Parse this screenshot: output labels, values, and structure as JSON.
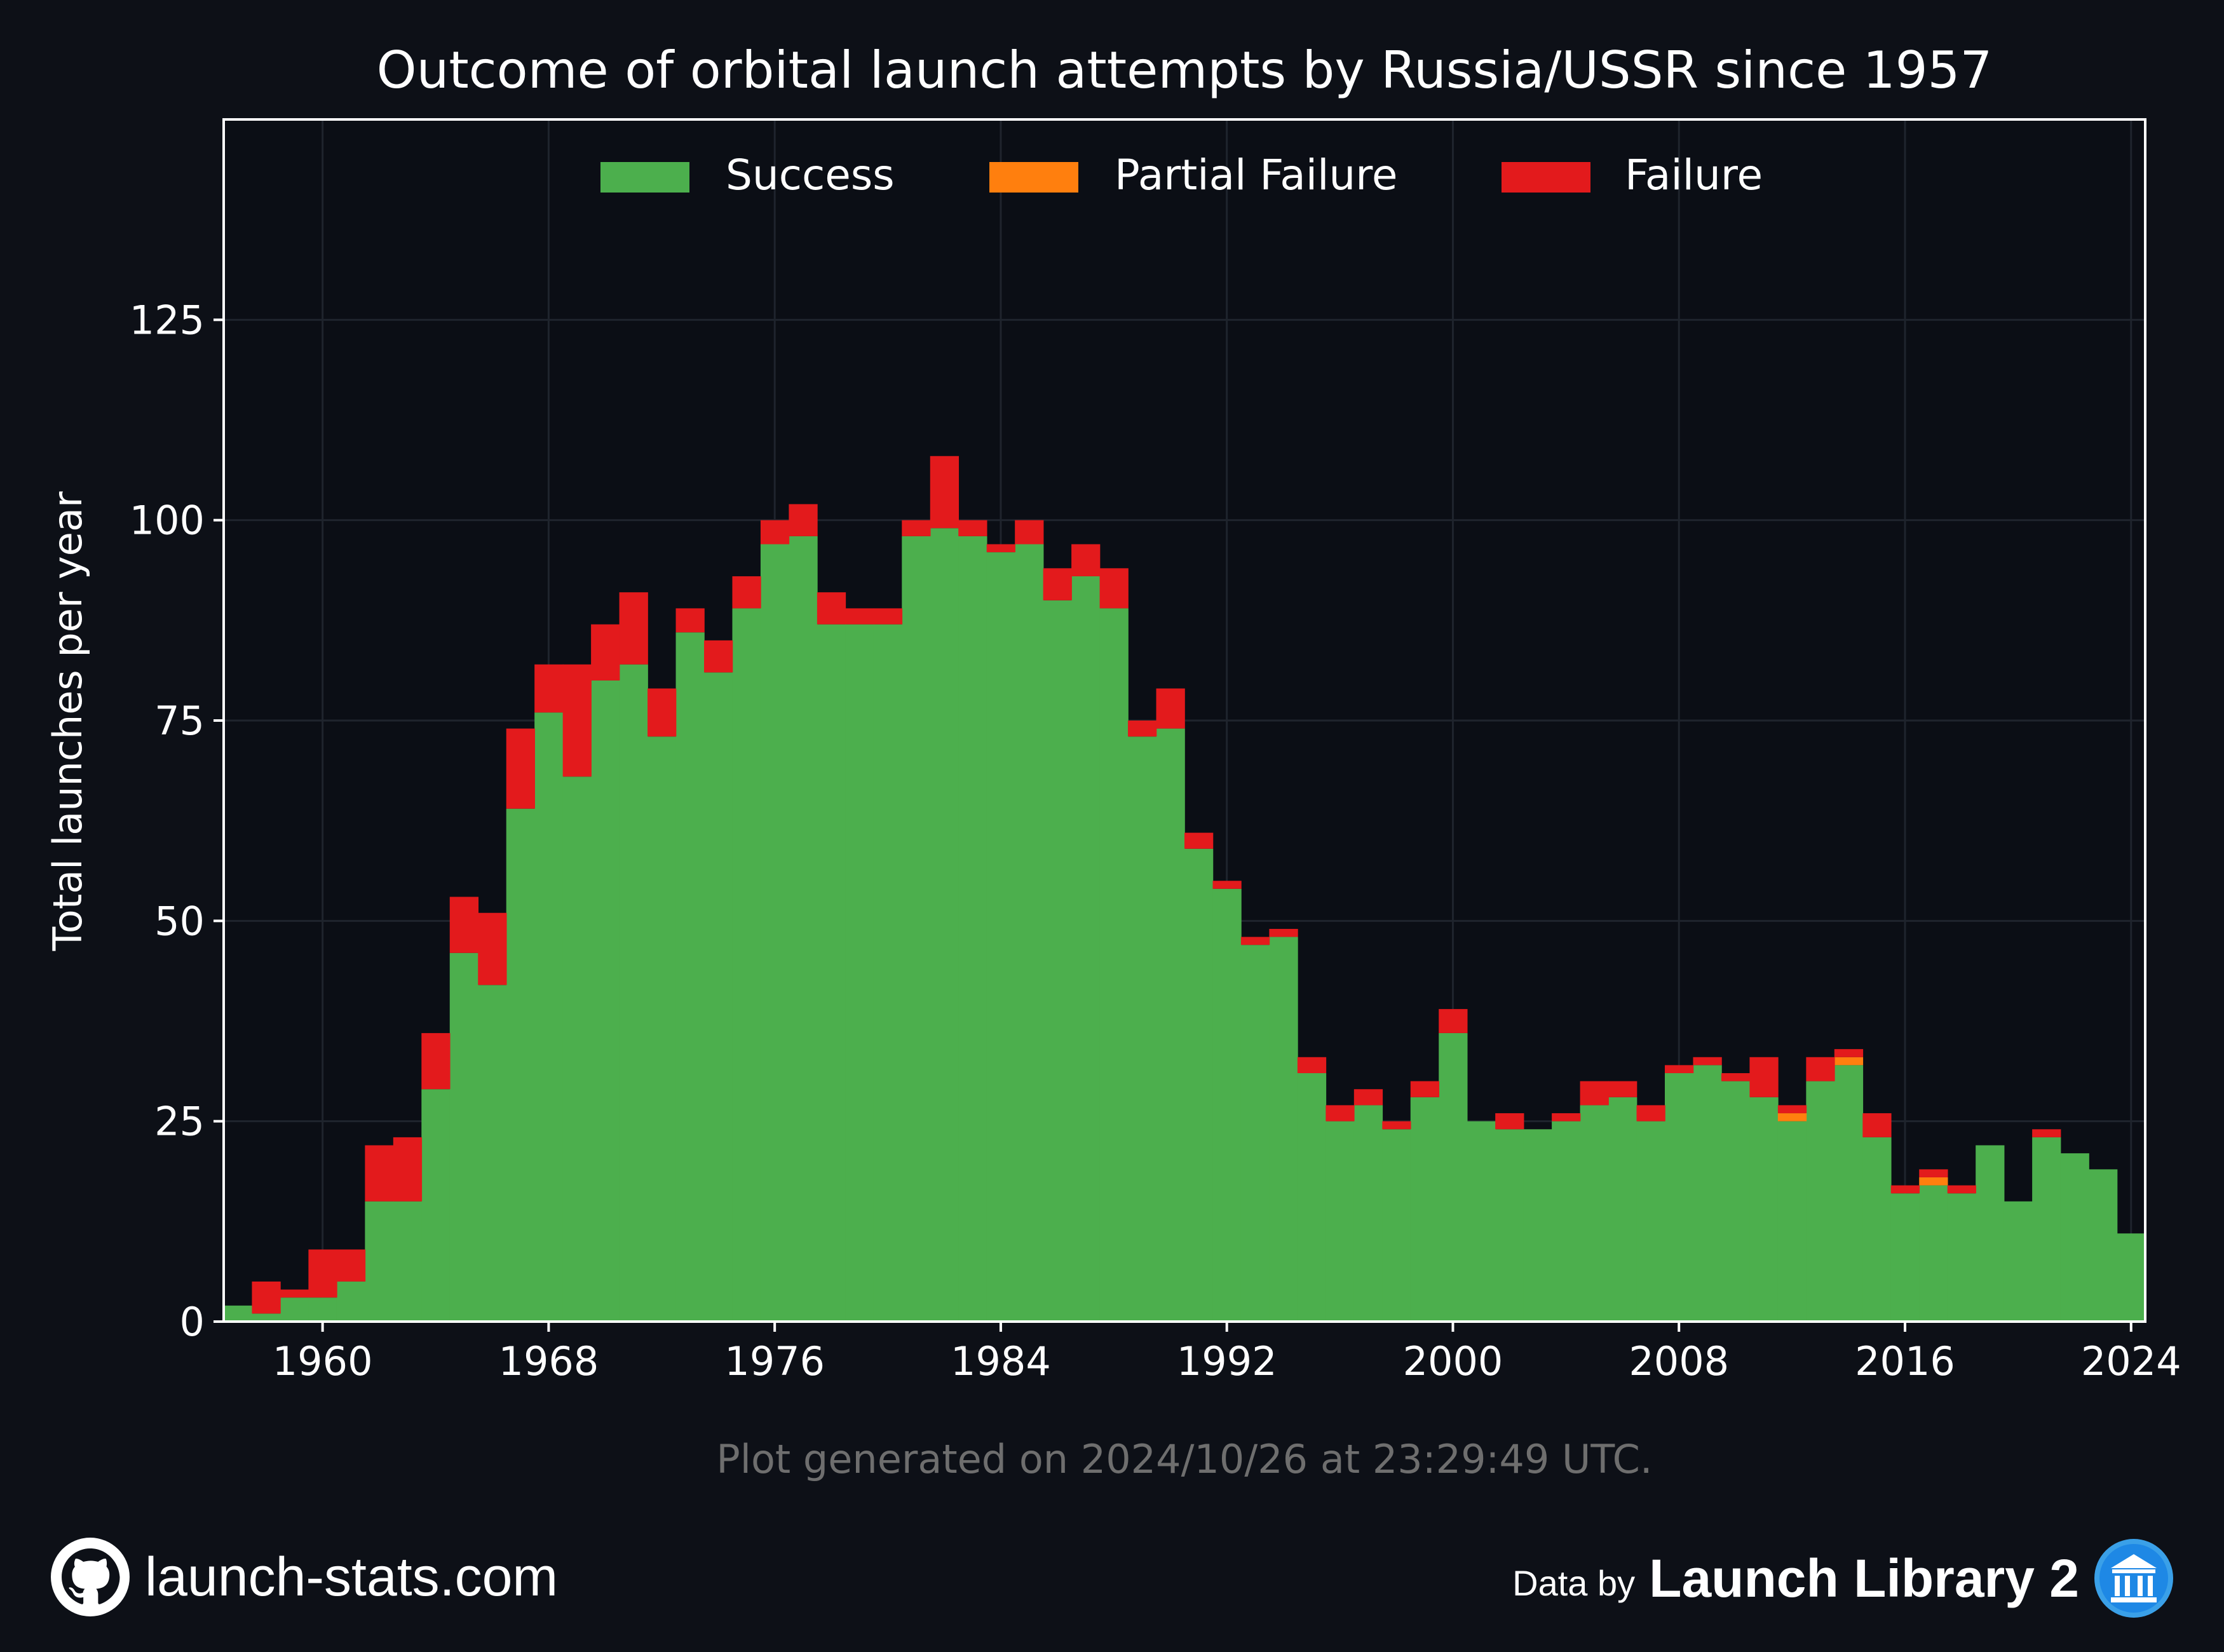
{
  "colors": {
    "background": "#0d1017",
    "success": "#4caf4d",
    "partial_failure": "#ff7f0e",
    "failure": "#e31a1c",
    "grid": "#1f242d",
    "text": "#ffffff",
    "footnote": "#6e6e6e"
  },
  "chart_data": {
    "type": "bar",
    "stacked": true,
    "title": "Outcome of orbital launch attempts by Russia/USSR since 1957",
    "xlabel": "",
    "ylabel": "Total launches per year",
    "xlim": [
      1956.5,
      2024.5
    ],
    "ylim": [
      0,
      150
    ],
    "yticks": [
      0,
      25,
      50,
      75,
      100,
      125
    ],
    "xticks": [
      1960,
      1968,
      1976,
      1984,
      1992,
      2000,
      2008,
      2016,
      2024
    ],
    "grid": true,
    "legend_position": "top-center",
    "categories": [
      1957,
      1958,
      1959,
      1960,
      1961,
      1962,
      1963,
      1964,
      1965,
      1966,
      1967,
      1968,
      1969,
      1970,
      1971,
      1972,
      1973,
      1974,
      1975,
      1976,
      1977,
      1978,
      1979,
      1980,
      1981,
      1982,
      1983,
      1984,
      1985,
      1986,
      1987,
      1988,
      1989,
      1990,
      1991,
      1992,
      1993,
      1994,
      1995,
      1996,
      1997,
      1998,
      1999,
      2000,
      2001,
      2002,
      2003,
      2004,
      2005,
      2006,
      2007,
      2008,
      2009,
      2010,
      2011,
      2012,
      2013,
      2014,
      2015,
      2016,
      2017,
      2018,
      2019,
      2020,
      2021,
      2022,
      2023,
      2024
    ],
    "series": [
      {
        "name": "Success",
        "color": "#4caf4d",
        "values": [
          2,
          1,
          3,
          3,
          5,
          15,
          15,
          29,
          46,
          42,
          64,
          76,
          68,
          80,
          82,
          73,
          86,
          81,
          89,
          97,
          98,
          87,
          87,
          87,
          98,
          99,
          98,
          96,
          97,
          90,
          93,
          89,
          73,
          74,
          59,
          54,
          47,
          48,
          31,
          25,
          27,
          24,
          28,
          36,
          25,
          24,
          24,
          25,
          27,
          28,
          25,
          31,
          32,
          30,
          28,
          25,
          30,
          32,
          23,
          16,
          17,
          16,
          22,
          15,
          23,
          21,
          19,
          11
        ]
      },
      {
        "name": "Partial Failure",
        "color": "#ff7f0e",
        "values": [
          0,
          0,
          0,
          0,
          0,
          0,
          0,
          0,
          0,
          0,
          0,
          0,
          0,
          0,
          0,
          0,
          0,
          0,
          0,
          0,
          0,
          0,
          0,
          0,
          0,
          0,
          0,
          0,
          0,
          0,
          0,
          0,
          0,
          0,
          0,
          0,
          0,
          0,
          0,
          0,
          0,
          0,
          0,
          0,
          0,
          0,
          0,
          0,
          0,
          0,
          0,
          0,
          0,
          0,
          0,
          1,
          0,
          1,
          0,
          0,
          1,
          0,
          0,
          0,
          0,
          0,
          0,
          0
        ]
      },
      {
        "name": "Failure",
        "color": "#e31a1c",
        "values": [
          0,
          4,
          1,
          6,
          4,
          7,
          8,
          7,
          7,
          9,
          10,
          6,
          14,
          7,
          9,
          6,
          3,
          4,
          4,
          3,
          4,
          4,
          2,
          2,
          2,
          9,
          2,
          1,
          3,
          4,
          4,
          5,
          2,
          5,
          2,
          1,
          1,
          1,
          2,
          2,
          2,
          1,
          2,
          3,
          0,
          2,
          0,
          1,
          3,
          2,
          2,
          1,
          1,
          1,
          5,
          1,
          3,
          1,
          3,
          1,
          1,
          1,
          0,
          0,
          1,
          0,
          0,
          0
        ]
      }
    ]
  },
  "footnote": "Plot generated on 2024/10/26 at 23:29:49 UTC.",
  "footer": {
    "site": "launch-stats.com",
    "data_by": "Data by",
    "brand": "Launch Library 2",
    "github_icon": "github-icon",
    "library_icon": "library-icon"
  }
}
